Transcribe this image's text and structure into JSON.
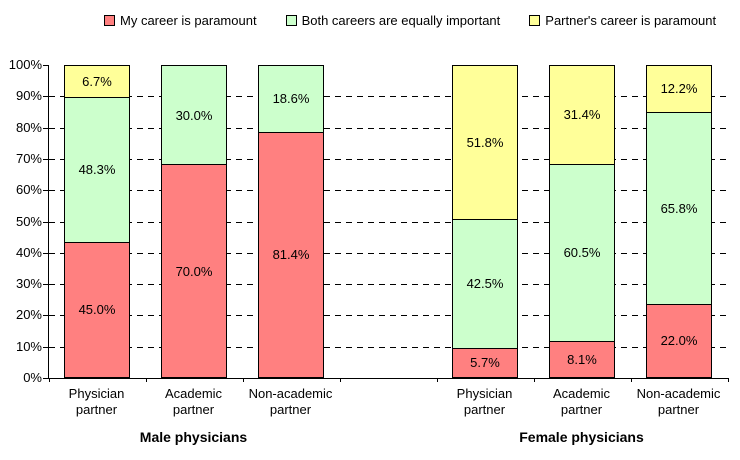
{
  "chart_data": {
    "type": "bar",
    "stacked": true,
    "title": "",
    "xlabel": "",
    "ylabel": "",
    "legend": [
      {
        "label": "My career is paramount",
        "color": "#FF8080"
      },
      {
        "label": "Both careers are equally important",
        "color": "#CCFFCC"
      },
      {
        "label": "Partner's career is paramount",
        "color": "#FFFF99"
      }
    ],
    "y_axis": {
      "min": 0,
      "max": 100,
      "step": 10,
      "tick_labels": [
        "0%",
        "10%",
        "20%",
        "30%",
        "40%",
        "50%",
        "60%",
        "70%",
        "80%",
        "90%",
        "100%"
      ]
    },
    "gridlines": {
      "style": "dashed",
      "at": [
        10,
        20,
        30,
        40,
        50,
        60,
        70,
        80,
        90
      ]
    },
    "num_slots": 7,
    "categories": [
      {
        "slot": 0,
        "lines": [
          "Physician",
          "partner"
        ],
        "group": "Male physicians"
      },
      {
        "slot": 1,
        "lines": [
          "Academic",
          "partner"
        ],
        "group": "Male physicians"
      },
      {
        "slot": 2,
        "lines": [
          "Non-academic",
          "partner"
        ],
        "group": "Male physicians"
      },
      {
        "slot": 4,
        "lines": [
          "Physician",
          "partner"
        ],
        "group": "Female physicians"
      },
      {
        "slot": 5,
        "lines": [
          "Academic",
          "partner"
        ],
        "group": "Female physicians"
      },
      {
        "slot": 6,
        "lines": [
          "Non-academic",
          "partner"
        ],
        "group": "Female physicians"
      }
    ],
    "groups": [
      {
        "label": "Male physicians",
        "center_slot": 1
      },
      {
        "label": "Female physicians",
        "center_slot": 5
      }
    ],
    "series": [
      {
        "name": "My career is paramount",
        "color": "#FF8080",
        "values": [
          45.0,
          70.0,
          81.4,
          5.7,
          8.1,
          22.0
        ],
        "labels": [
          "45.0%",
          "70.0%",
          "81.4%",
          "5.7%",
          "8.1%",
          "22.0%"
        ]
      },
      {
        "name": "Both careers are equally important",
        "color": "#CCFFCC",
        "values": [
          48.3,
          30.0,
          18.6,
          42.5,
          60.5,
          65.8
        ],
        "labels": [
          "48.3%",
          "30.0%",
          "18.6%",
          "42.5%",
          "60.5%",
          "65.8%"
        ]
      },
      {
        "name": "Partner's career is paramount",
        "color": "#FFFF99",
        "values": [
          6.7,
          0,
          0,
          51.8,
          31.4,
          12.2
        ],
        "labels": [
          "6.7%",
          "",
          "",
          "51.8%",
          "31.4%",
          "12.2%"
        ]
      }
    ]
  }
}
